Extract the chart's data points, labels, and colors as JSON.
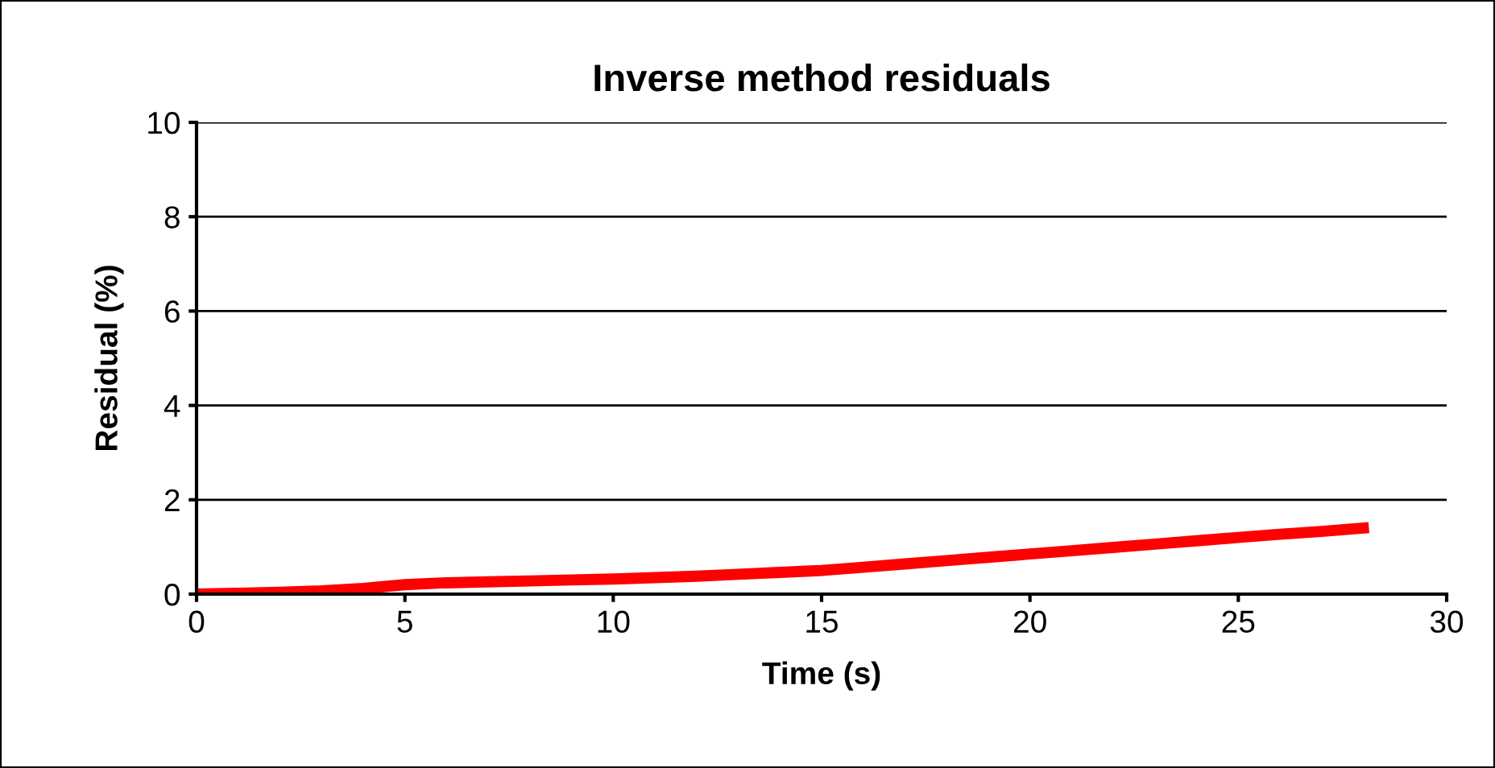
{
  "chart_data": {
    "type": "line",
    "title": "Inverse method residuals",
    "xlabel": "Time (s)",
    "ylabel": "Residual (%)",
    "series": [
      {
        "color": "#ff0000",
        "x": [
          0,
          1,
          2,
          3,
          4,
          5,
          6,
          7,
          8,
          9,
          10,
          11,
          12,
          13,
          14,
          15,
          16,
          17,
          18,
          19,
          20,
          21,
          22,
          23,
          24,
          25,
          26,
          27,
          28
        ],
        "values": [
          0.0,
          0.02,
          0.04,
          0.07,
          0.12,
          0.2,
          0.24,
          0.26,
          0.28,
          0.3,
          0.32,
          0.35,
          0.38,
          0.42,
          0.46,
          0.5,
          0.57,
          0.64,
          0.71,
          0.78,
          0.85,
          0.92,
          0.99,
          1.06,
          1.13,
          1.2,
          1.27,
          1.33,
          1.4
        ]
      }
    ],
    "xlim": [
      0,
      30
    ],
    "xticks": [
      0,
      5,
      10,
      15,
      20,
      25,
      30
    ],
    "ylim": [
      0,
      10
    ],
    "yticks": [
      0,
      2,
      4,
      6,
      8,
      10
    ],
    "grid": "y",
    "marker": "none",
    "line_style": "solid",
    "legend": false
  }
}
